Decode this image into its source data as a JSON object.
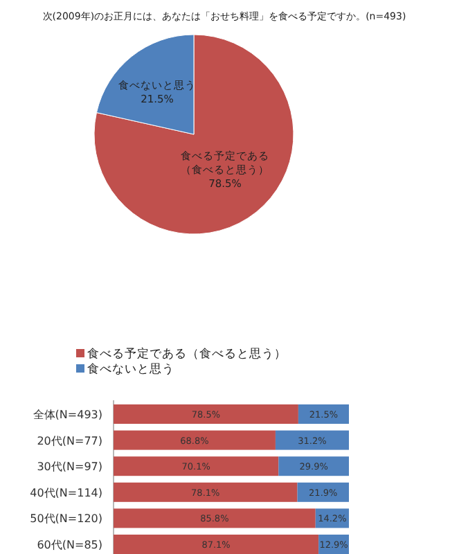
{
  "chart_data": [
    {
      "type": "pie",
      "title": "次(2009年)のお正月には、あなたは「おせち料理」を食べる予定ですか。(n=493)",
      "categories": [
        "食べる予定である（食べると思う）",
        "食べないと思う"
      ],
      "values": [
        78.5,
        21.5
      ],
      "value_labels": [
        "78.5%",
        "21.5%"
      ],
      "colors": [
        "#c0504d",
        "#4f81bd"
      ],
      "legend": false
    },
    {
      "type": "bar",
      "orientation": "horizontal",
      "stacked": true,
      "legend": "top left",
      "categories": [
        "全体(N=493)",
        "20代(N=77)",
        "30代(N=97)",
        "40代(N=114)",
        "50代(N=120)",
        "60代(N=85)"
      ],
      "series": [
        {
          "name": "食べる予定である（食べると思う）",
          "color": "#c0504d",
          "values": [
            78.5,
            68.8,
            70.1,
            78.1,
            85.8,
            87.1
          ],
          "value_labels": [
            "78.5%",
            "68.8%",
            "70.1%",
            "78.1%",
            "85.8%",
            "87.1%"
          ]
        },
        {
          "name": "食べないと思う",
          "color": "#4f81bd",
          "values": [
            21.5,
            31.2,
            29.9,
            21.9,
            14.2,
            12.9
          ],
          "value_labels": [
            "21.5%",
            "31.2%",
            "29.9%",
            "21.9%",
            "14.2%",
            "12.9%"
          ]
        }
      ]
    }
  ]
}
